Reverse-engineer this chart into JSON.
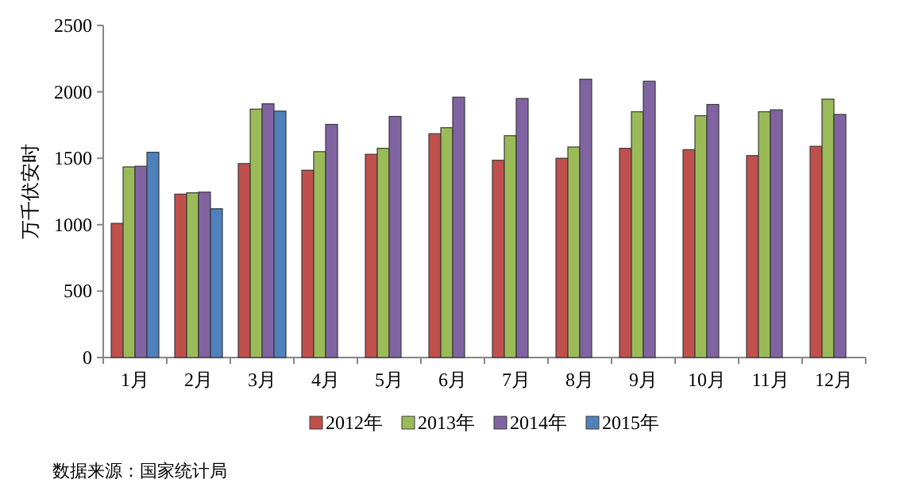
{
  "chart_data": {
    "type": "bar",
    "ylabel": "万千伏安时",
    "categories": [
      "1月",
      "2月",
      "3月",
      "4月",
      "5月",
      "6月",
      "7月",
      "8月",
      "9月",
      "10月",
      "11月",
      "12月"
    ],
    "series": [
      {
        "name": "2012年",
        "color": "#c0504d",
        "values": [
          1010,
          1230,
          1460,
          1410,
          1530,
          1685,
          1485,
          1500,
          1575,
          1565,
          1520,
          1590
        ]
      },
      {
        "name": "2013年",
        "color": "#9bbb59",
        "values": [
          1435,
          1240,
          1870,
          1550,
          1575,
          1730,
          1670,
          1585,
          1850,
          1820,
          1850,
          1945
        ]
      },
      {
        "name": "2014年",
        "color": "#8064a2",
        "values": [
          1440,
          1245,
          1910,
          1755,
          1815,
          1960,
          1950,
          2095,
          2080,
          1905,
          1865,
          1830
        ]
      },
      {
        "name": "2015年",
        "color": "#4f81bd",
        "values": [
          1545,
          1120,
          1855,
          null,
          null,
          null,
          null,
          null,
          null,
          null,
          null,
          null
        ]
      }
    ],
    "ylim": [
      0,
      2500
    ],
    "yticks": [
      0,
      500,
      1000,
      1500,
      2000,
      2500
    ],
    "legend": "bottom",
    "grid": false,
    "annotations": [
      "数据来源：国家统计局"
    ]
  }
}
